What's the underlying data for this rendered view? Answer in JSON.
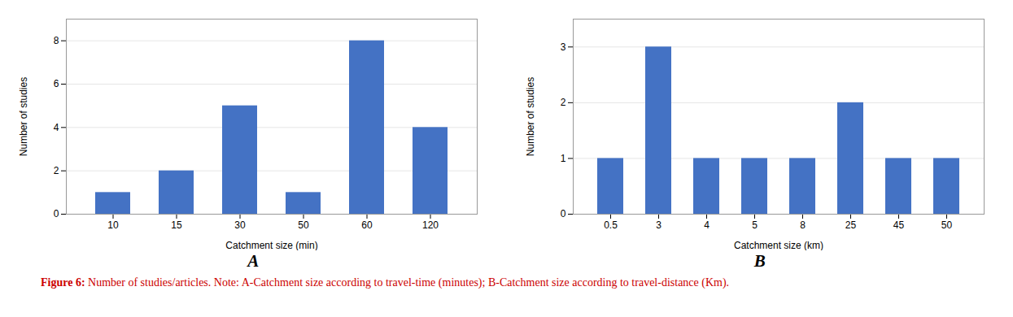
{
  "chart_data": [
    {
      "type": "bar",
      "title": "A",
      "categories": [
        "10",
        "15",
        "30",
        "50",
        "60",
        "120"
      ],
      "values": [
        1,
        2,
        5,
        1,
        8,
        4
      ],
      "xlabel": "Catchment size (min)",
      "ylabel": "Number of studies",
      "ylim": [
        0,
        9
      ],
      "yticks": [
        0,
        2,
        4,
        6,
        8
      ],
      "color": "#4472C4",
      "grid": true
    },
    {
      "type": "bar",
      "title": "B",
      "categories": [
        "0.5",
        "3",
        "4",
        "5",
        "8",
        "25",
        "45",
        "50"
      ],
      "values": [
        1,
        3,
        1,
        1,
        1,
        2,
        1,
        1
      ],
      "xlabel": "Catchment size (km)",
      "ylabel": "Number of studies",
      "ylim": [
        0,
        3.5
      ],
      "yticks": [
        0,
        1,
        2,
        3
      ],
      "color": "#4472C4",
      "grid": true
    }
  ],
  "caption": {
    "texts": [
      "Figure 6:",
      "Number of studies/articles. Note: A-Catchment size according to travel-time (minutes); B-Catchment size according to travel-distance (Km)."
    ],
    "color": "#cc0000"
  }
}
